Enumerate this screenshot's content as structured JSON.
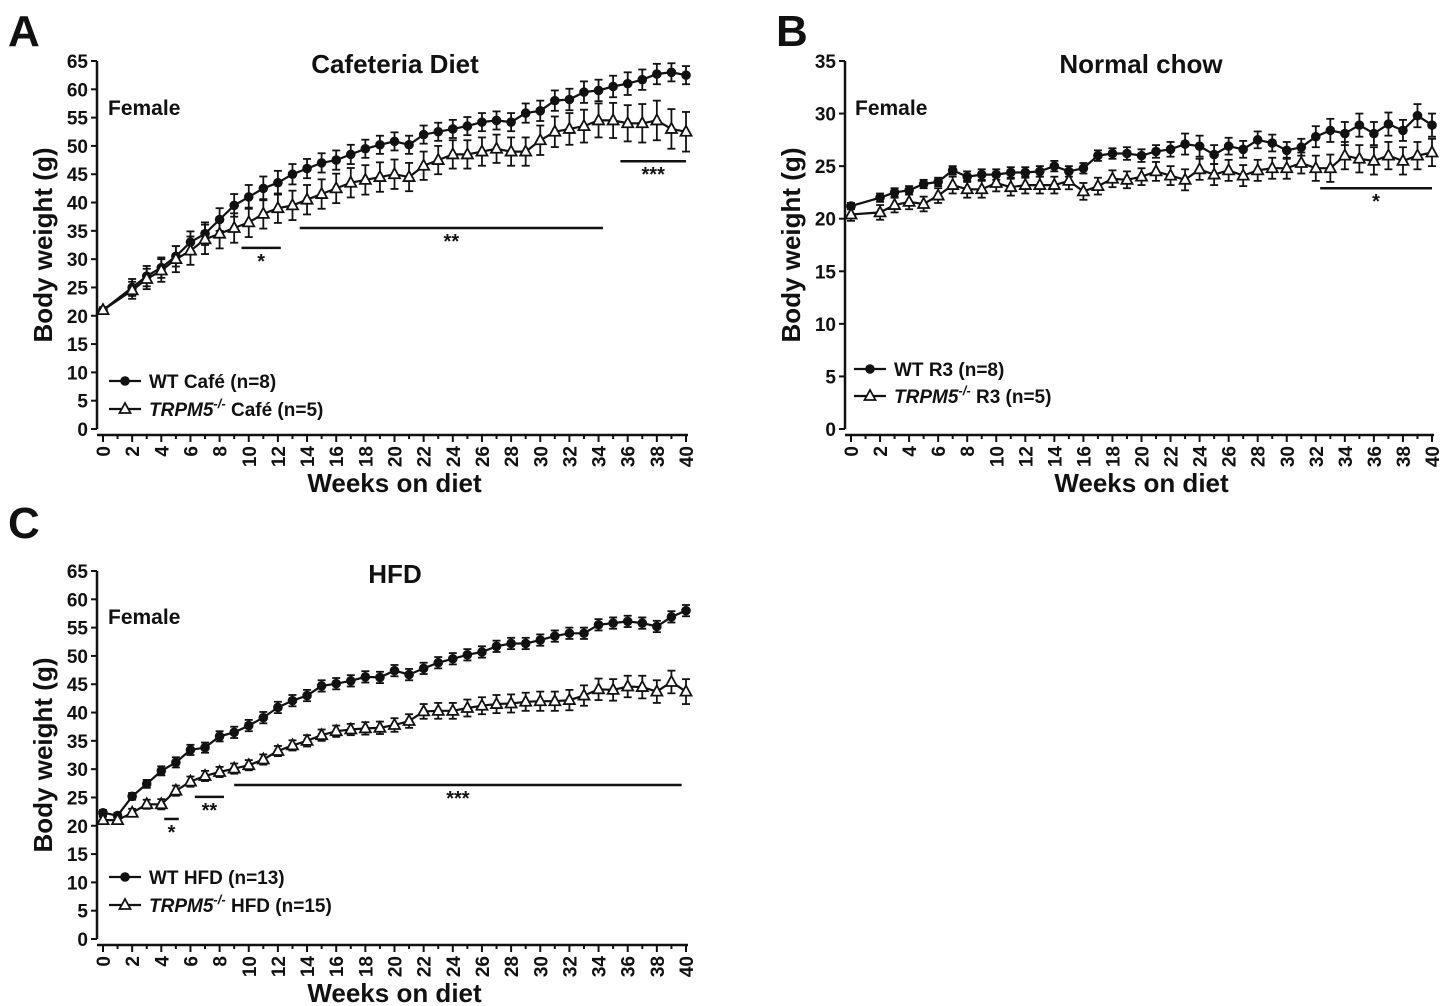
{
  "chart_data": [
    {
      "type": "line",
      "panel_label": "A",
      "title": "Cafeteria Diet",
      "annotation": "Female",
      "xlabel": "Weeks on diet",
      "ylabel": "Body weight (g)",
      "xlim": [
        0,
        40
      ],
      "ylim": [
        0,
        65
      ],
      "x_ticks": [
        0,
        2,
        4,
        6,
        8,
        10,
        12,
        14,
        16,
        18,
        20,
        22,
        24,
        26,
        28,
        30,
        32,
        34,
        36,
        38,
        40
      ],
      "y_ticks": [
        0,
        5,
        10,
        15,
        20,
        25,
        30,
        35,
        40,
        45,
        50,
        55,
        60,
        65
      ],
      "x": [
        0,
        2,
        3,
        4,
        5,
        6,
        7,
        8,
        9,
        10,
        11,
        12,
        13,
        14,
        15,
        16,
        17,
        18,
        19,
        20,
        21,
        22,
        23,
        24,
        25,
        26,
        27,
        28,
        29,
        30,
        31,
        32,
        33,
        34,
        35,
        36,
        37,
        38,
        39,
        40
      ],
      "series": [
        {
          "name": "WT Café (n=8)",
          "legend_prefix": "WT Café (n=8)",
          "marker": "filled-circle",
          "values": [
            21,
            25,
            27,
            28.5,
            30.5,
            33,
            34.5,
            37,
            39.5,
            41,
            42.5,
            43.5,
            45,
            46,
            47,
            47.5,
            48.5,
            49.5,
            50.2,
            50.8,
            50.2,
            52,
            52.5,
            53,
            53.5,
            54.2,
            54.5,
            54.2,
            55.8,
            56.2,
            58,
            58.2,
            59.5,
            59.8,
            60.5,
            61,
            61.7,
            62.7,
            63,
            62.5
          ],
          "errors": [
            0.5,
            1.5,
            1.8,
            1.8,
            1.8,
            1.9,
            2.0,
            2.0,
            2.0,
            2.1,
            2.1,
            2.1,
            1.8,
            1.7,
            1.7,
            1.7,
            1.7,
            1.6,
            1.6,
            1.6,
            1.6,
            1.6,
            1.6,
            1.6,
            1.6,
            1.6,
            1.6,
            1.6,
            1.7,
            1.8,
            1.8,
            1.9,
            1.9,
            1.9,
            1.9,
            2.0,
            1.8,
            1.8,
            1.6,
            1.6
          ]
        },
        {
          "name": "TRPM5-/- Café (n=5)",
          "legend_prefix": "TRPM5",
          "legend_sup": "-/-",
          "legend_suffix": " Café (n=5)",
          "marker": "open-triangle",
          "values": [
            21,
            24.5,
            26.5,
            28,
            30,
            31.5,
            33.5,
            34.5,
            35.5,
            36.5,
            38,
            39,
            39.5,
            40.5,
            41.5,
            42.5,
            43.5,
            44,
            44.5,
            45,
            44.5,
            46.5,
            47.5,
            48.5,
            48.5,
            49,
            49.5,
            49,
            49,
            51,
            52.5,
            53,
            53.5,
            54.5,
            54.5,
            54,
            54,
            54.5,
            53,
            52.5
          ],
          "errors": [
            0.5,
            1.5,
            1.8,
            2.0,
            2.3,
            2.5,
            2.6,
            2.6,
            2.6,
            2.6,
            2.6,
            2.6,
            2.6,
            2.6,
            2.6,
            2.6,
            2.6,
            2.6,
            2.6,
            2.6,
            2.5,
            2.5,
            2.5,
            2.5,
            2.5,
            2.5,
            2.5,
            2.5,
            2.5,
            2.6,
            2.7,
            2.8,
            2.9,
            3.0,
            3.1,
            3.2,
            3.4,
            3.5,
            3.5,
            3.5
          ]
        }
      ],
      "significance": [
        {
          "label": "*",
          "x": [
            9.5,
            12.2
          ],
          "y": 32
        },
        {
          "label": "**",
          "x": [
            13.5,
            34.3
          ],
          "y": 35.5
        },
        {
          "label": "***",
          "x": [
            35.5,
            40
          ],
          "y": 47.3
        }
      ]
    },
    {
      "type": "line",
      "panel_label": "B",
      "title": "Normal chow",
      "annotation": "Female",
      "xlabel": "Weeks on diet",
      "ylabel": "Body weight (g)",
      "xlim": [
        0,
        40
      ],
      "ylim": [
        0,
        35
      ],
      "x_ticks": [
        0,
        2,
        4,
        6,
        8,
        10,
        12,
        14,
        16,
        18,
        20,
        22,
        24,
        26,
        28,
        30,
        32,
        34,
        36,
        38,
        40
      ],
      "y_ticks": [
        0,
        5,
        10,
        15,
        20,
        25,
        30,
        35
      ],
      "x": [
        0,
        2,
        3,
        4,
        5,
        6,
        7,
        8,
        9,
        10,
        11,
        12,
        13,
        14,
        15,
        16,
        17,
        18,
        19,
        20,
        21,
        22,
        23,
        24,
        25,
        26,
        27,
        28,
        29,
        30,
        31,
        32,
        33,
        34,
        35,
        36,
        37,
        38,
        39,
        40
      ],
      "series": [
        {
          "name": "WT R3 (n=8)",
          "legend_prefix": "WT R3 (n=8)",
          "marker": "filled-circle",
          "values": [
            21.2,
            22,
            22.5,
            22.7,
            23.3,
            23.5,
            24.6,
            24,
            24.2,
            24.2,
            24.4,
            24.4,
            24.5,
            25,
            24.5,
            24.8,
            26,
            26.2,
            26.2,
            26,
            26.4,
            26.6,
            27.1,
            26.9,
            26.1,
            26.9,
            26.6,
            27.5,
            27.2,
            26.5,
            26.8,
            27.8,
            28.4,
            28.1,
            28.9,
            28.1,
            29,
            28.4,
            29.8,
            28.9
          ],
          "errors": [
            0.3,
            0.4,
            0.4,
            0.4,
            0.4,
            0.4,
            0.4,
            0.5,
            0.5,
            0.5,
            0.5,
            0.5,
            0.5,
            0.5,
            0.5,
            0.5,
            0.5,
            0.5,
            0.6,
            0.6,
            0.6,
            0.7,
            1.0,
            1.0,
            0.9,
            0.8,
            0.8,
            0.8,
            0.8,
            0.8,
            0.8,
            1.0,
            1.1,
            1.1,
            1.1,
            1.1,
            1.1,
            1.0,
            1.1,
            1.1
          ]
        },
        {
          "name": "TRPM5-/- R3 (n=5)",
          "legend_prefix": "TRPM5",
          "legend_sup": "-/-",
          "legend_suffix": " R3 (n=5)",
          "marker": "open-triangle",
          "values": [
            20.4,
            20.6,
            21.3,
            21.6,
            21.4,
            22.2,
            23.2,
            22.8,
            22.8,
            23.4,
            23,
            23.2,
            23.2,
            23.2,
            23.6,
            22.6,
            23.1,
            23.8,
            23.7,
            24,
            24.5,
            24.1,
            23.7,
            24.7,
            24.2,
            24.6,
            24.1,
            24.6,
            24.8,
            24.8,
            25.3,
            24.8,
            24.8,
            26,
            25.7,
            25.5,
            26,
            25.5,
            26,
            26.3
          ],
          "errors": [
            0.6,
            0.7,
            0.7,
            0.7,
            0.7,
            0.7,
            0.8,
            0.8,
            0.8,
            0.8,
            0.8,
            0.8,
            0.8,
            0.8,
            0.8,
            0.8,
            0.8,
            0.8,
            0.8,
            0.8,
            0.9,
            0.9,
            1.0,
            1.0,
            1.0,
            1.0,
            1.0,
            1.0,
            1.0,
            1.0,
            1.0,
            1.2,
            1.3,
            1.3,
            1.3,
            1.3,
            1.3,
            1.3,
            1.3,
            1.3
          ]
        }
      ],
      "significance": [
        {
          "label": "*",
          "x": [
            32.3,
            40
          ],
          "y": 22.9
        }
      ]
    },
    {
      "type": "line",
      "panel_label": "C",
      "title": "HFD",
      "annotation": "Female",
      "xlabel": "Weeks on diet",
      "ylabel": "Body weight (g)",
      "xlim": [
        0,
        40
      ],
      "ylim": [
        0,
        65
      ],
      "x_ticks": [
        0,
        2,
        4,
        6,
        8,
        10,
        12,
        14,
        16,
        18,
        20,
        22,
        24,
        26,
        28,
        30,
        32,
        34,
        36,
        38,
        40
      ],
      "y_ticks": [
        0,
        5,
        10,
        15,
        20,
        25,
        30,
        35,
        40,
        45,
        50,
        55,
        60,
        65
      ],
      "x": [
        0,
        1,
        2,
        3,
        4,
        5,
        6,
        7,
        8,
        9,
        10,
        11,
        12,
        13,
        14,
        15,
        16,
        17,
        18,
        19,
        20,
        21,
        22,
        23,
        24,
        25,
        26,
        27,
        28,
        29,
        30,
        31,
        32,
        33,
        34,
        35,
        36,
        37,
        38,
        39,
        40
      ],
      "series": [
        {
          "name": "WT HFD (n=13)",
          "legend_prefix": "WT HFD (n=13)",
          "marker": "filled-circle",
          "values": [
            22.3,
            21.8,
            25.2,
            27.4,
            29.7,
            31.2,
            33.4,
            33.8,
            35.8,
            36.5,
            37.7,
            39.1,
            40.9,
            42.1,
            43,
            44.7,
            45.1,
            45.6,
            46.3,
            46.2,
            47.4,
            46.7,
            47.8,
            48.8,
            49.5,
            50.2,
            50.7,
            51.7,
            52.2,
            52.2,
            52.8,
            53.5,
            54,
            54,
            55.5,
            55.8,
            56.1,
            55.8,
            55.2,
            56.9,
            58
          ],
          "errors": [
            0.5,
            0.5,
            0.6,
            0.7,
            0.8,
            0.9,
            0.9,
            0.9,
            0.9,
            1.0,
            1.0,
            1.0,
            1.0,
            1.0,
            1.0,
            1.0,
            1.0,
            1.0,
            1.0,
            1.0,
            1.0,
            1.0,
            1.0,
            1.0,
            1.0,
            1.0,
            1.0,
            1.0,
            1.0,
            1.0,
            1.0,
            1.0,
            1.0,
            1.0,
            1.0,
            1.0,
            1.0,
            1.0,
            1.0,
            1.0,
            1.0
          ]
        },
        {
          "name": "TRPM5-/- HFD (n=15)",
          "legend_prefix": "TRPM5",
          "legend_sup": "-/-",
          "legend_suffix": " HFD (n=15)",
          "marker": "open-triangle",
          "values": [
            21,
            21,
            22.3,
            23.8,
            23.8,
            26.2,
            27.8,
            28.8,
            29.5,
            30.1,
            30.7,
            31.7,
            33.2,
            34.2,
            35,
            36,
            36.7,
            37,
            37.2,
            37.3,
            37.8,
            38.5,
            40.2,
            40.3,
            40.3,
            40.8,
            41.2,
            41.5,
            41.6,
            41.9,
            42,
            42,
            42.2,
            43,
            44.1,
            44,
            44.6,
            44.5,
            43.7,
            45.4,
            43.7
          ],
          "errors": [
            0.6,
            0.7,
            0.7,
            0.8,
            0.9,
            0.9,
            0.9,
            0.9,
            0.9,
            0.9,
            0.9,
            0.9,
            0.9,
            0.9,
            1.0,
            1.0,
            1.0,
            1.0,
            1.1,
            1.1,
            1.2,
            1.2,
            1.3,
            1.4,
            1.4,
            1.5,
            1.5,
            1.6,
            1.6,
            1.6,
            1.7,
            1.7,
            1.8,
            1.8,
            1.9,
            1.9,
            1.9,
            2.0,
            2.0,
            2.0,
            2.2
          ]
        }
      ],
      "significance": [
        {
          "label": "*",
          "x": [
            4.2,
            5.2
          ],
          "y": 21.2
        },
        {
          "label": "**",
          "x": [
            6.3,
            8.3
          ],
          "y": 25.1
        },
        {
          "label": "***",
          "x": [
            9,
            39.7
          ],
          "y": 27.2
        }
      ]
    }
  ]
}
